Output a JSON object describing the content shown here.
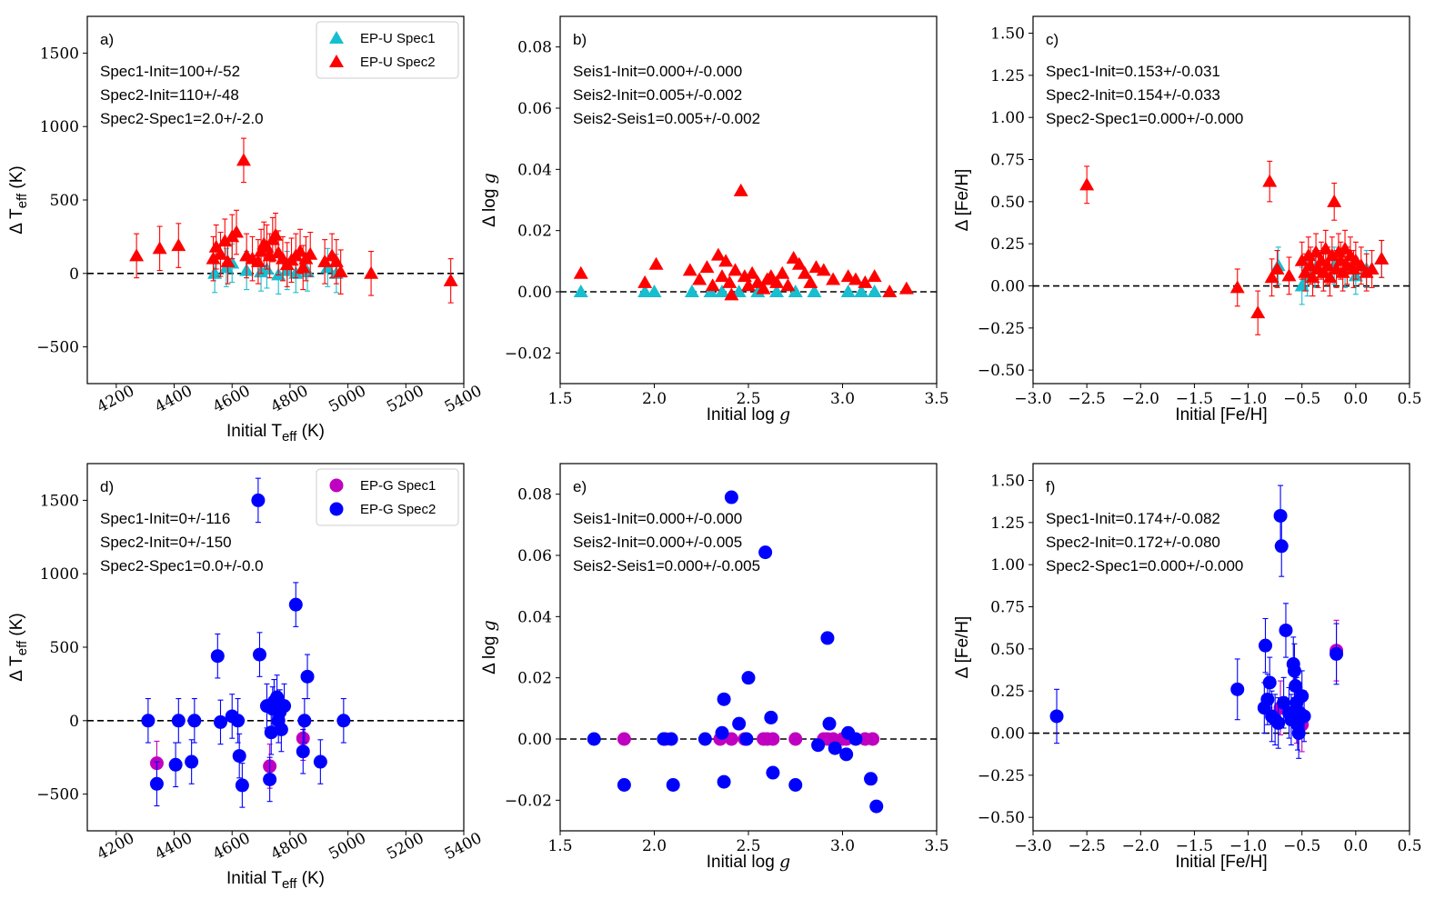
{
  "chart_data": [
    {
      "type": "scatter",
      "panel": "a)",
      "xlabel": "Initial T",
      "xlabel_sub": "eff",
      "xlabel_unit": " (K)",
      "ylabel": "Δ T",
      "ylabel_sub": "eff",
      "ylabel_unit": " (K)",
      "xlim": [
        4100,
        5400
      ],
      "ylim": [
        -750,
        1750
      ],
      "xticks": [
        4200,
        4400,
        4600,
        4800,
        5000,
        5200,
        5400
      ],
      "xtick_labels": [
        "4200",
        "4400",
        "4600",
        "4800",
        "5000",
        "5200",
        "5400"
      ],
      "yticks": [
        -500,
        0,
        500,
        1000,
        1500
      ],
      "ytick_labels": [
        "−500",
        "0",
        "500",
        "1000",
        "1500"
      ],
      "annotations": [
        "Spec1-Init=100+/-52",
        "Spec2-Init=110+/-48",
        "Spec2-Spec1=2.0+/-2.0"
      ],
      "legend": [
        "EP-U Spec1",
        "EP-U Spec2"
      ],
      "marker": "triangle",
      "series": [
        {
          "name": "EP-U Spec1",
          "color": "#17becf",
          "x": [
            4540,
            4580,
            4600,
            4650,
            4700,
            4720,
            4760,
            4790,
            4820,
            4860,
            4930,
            4960
          ],
          "y": [
            0,
            40,
            70,
            20,
            10,
            30,
            -10,
            20,
            0,
            10,
            40,
            0
          ],
          "err": [
            130,
            130,
            130,
            130,
            130,
            130,
            130,
            130,
            130,
            130,
            130,
            130
          ]
        },
        {
          "name": "EP-U Spec2",
          "color": "#ff0000",
          "x": [
            4270,
            4350,
            4415,
            4535,
            4545,
            4560,
            4575,
            4585,
            4600,
            4615,
            4640,
            4650,
            4670,
            4690,
            4700,
            4710,
            4720,
            4730,
            4740,
            4750,
            4760,
            4775,
            4790,
            4805,
            4820,
            4835,
            4845,
            4855,
            4870,
            4920,
            4945,
            4960,
            4975,
            5080,
            5355
          ],
          "y": [
            120,
            170,
            190,
            100,
            180,
            130,
            220,
            80,
            250,
            280,
            770,
            120,
            100,
            80,
            150,
            200,
            180,
            120,
            230,
            260,
            140,
            100,
            60,
            90,
            120,
            150,
            40,
            100,
            130,
            80,
            120,
            80,
            10,
            0,
            -50
          ],
          "err": [
            150,
            150,
            150,
            150,
            150,
            150,
            150,
            150,
            150,
            150,
            150,
            150,
            150,
            150,
            150,
            150,
            150,
            150,
            150,
            150,
            150,
            150,
            150,
            150,
            150,
            150,
            150,
            150,
            150,
            150,
            150,
            150,
            150,
            150,
            150
          ]
        }
      ]
    },
    {
      "type": "scatter",
      "panel": "b)",
      "xlabel": "Initial log ",
      "xlabel_italic": "g",
      "ylabel": "Δ log ",
      "ylabel_italic": "g",
      "xlim": [
        1.5,
        3.5
      ],
      "ylim": [
        -0.03,
        0.09
      ],
      "xticks": [
        1.5,
        2.0,
        2.5,
        3.0,
        3.5
      ],
      "xtick_labels": [
        "1.5",
        "2.0",
        "2.5",
        "3.0",
        "3.5"
      ],
      "yticks": [
        -0.02,
        0.0,
        0.02,
        0.04,
        0.06,
        0.08
      ],
      "ytick_labels": [
        "−0.02",
        "0.00",
        "0.02",
        "0.04",
        "0.06",
        "0.08"
      ],
      "annotations": [
        "Seis1-Init=0.000+/-0.000",
        "Seis2-Init=0.005+/-0.002",
        "Seis2-Seis1=0.005+/-0.002"
      ],
      "marker": "triangle",
      "series": [
        {
          "name": "EP-U Spec1",
          "color": "#17becf",
          "x": [
            1.61,
            1.95,
            2.0,
            2.2,
            2.3,
            2.36,
            2.45,
            2.55,
            2.65,
            2.75,
            2.85,
            3.03,
            3.1,
            3.17
          ],
          "y": [
            0,
            0,
            0,
            0,
            0,
            0,
            0,
            0,
            0,
            0,
            0,
            0,
            0,
            0
          ]
        },
        {
          "name": "EP-U Spec2",
          "color": "#ff0000",
          "x": [
            1.61,
            1.95,
            2.01,
            2.19,
            2.24,
            2.28,
            2.31,
            2.34,
            2.36,
            2.38,
            2.4,
            2.41,
            2.43,
            2.46,
            2.48,
            2.5,
            2.52,
            2.55,
            2.58,
            2.6,
            2.62,
            2.65,
            2.68,
            2.71,
            2.74,
            2.77,
            2.8,
            2.83,
            2.86,
            2.9,
            2.95,
            3.03,
            3.07,
            3.12,
            3.17,
            3.25,
            3.34
          ],
          "y": [
            0.006,
            0.003,
            0.009,
            0.007,
            0.004,
            0.008,
            0.002,
            0.012,
            0.005,
            0.01,
            0.003,
            -0.001,
            0.007,
            0.033,
            0.005,
            0.002,
            0.006,
            0.003,
            0.001,
            0.004,
            0.005,
            0.003,
            0.006,
            0.002,
            0.011,
            0.009,
            0.006,
            0.003,
            0.008,
            0.007,
            0.004,
            0.005,
            0.004,
            0.003,
            0.005,
            0.0,
            0.001
          ]
        }
      ]
    },
    {
      "type": "scatter",
      "panel": "c)",
      "xlabel": "Initial [Fe/H]",
      "ylabel": "Δ [Fe/H]",
      "xlim": [
        -3.0,
        0.5
      ],
      "ylim": [
        -0.58,
        1.6
      ],
      "xticks": [
        -3.0,
        -2.5,
        -2.0,
        -1.5,
        -1.0,
        -0.5,
        0.0,
        0.5
      ],
      "xtick_labels": [
        "−3.0",
        "−2.5",
        "−2.0",
        "−1.5",
        "−1.0",
        "−0.5",
        "0.0",
        "0.5"
      ],
      "yticks": [
        -0.5,
        -0.25,
        0.0,
        0.25,
        0.5,
        0.75,
        1.0,
        1.25,
        1.5
      ],
      "ytick_labels": [
        "−0.50",
        "−0.25",
        "0.00",
        "0.25",
        "0.50",
        "0.75",
        "1.00",
        "1.25",
        "1.50"
      ],
      "annotations": [
        "Spec1-Init=0.153+/-0.031",
        "Spec2-Init=0.154+/-0.033",
        "Spec2-Spec1=0.000+/-0.000"
      ],
      "marker": "triangle",
      "series": [
        {
          "name": "EP-U Spec1",
          "color": "#17becf",
          "x": [
            -0.72,
            -0.5,
            -0.45,
            -0.38,
            -0.3,
            -0.2,
            -0.1,
            0.0,
            0.1,
            0.24
          ],
          "y": [
            0.12,
            0.0,
            0.05,
            0.1,
            0.08,
            0.12,
            0.1,
            0.06,
            0.1,
            0.16
          ],
          "err": [
            0.11,
            0.11,
            0.11,
            0.11,
            0.11,
            0.11,
            0.11,
            0.11,
            0.11,
            0.11
          ]
        },
        {
          "name": "EP-U Spec2",
          "color": "#ff0000",
          "x": [
            -2.5,
            -1.1,
            -0.91,
            -0.8,
            -0.78,
            -0.73,
            -0.62,
            -0.5,
            -0.47,
            -0.44,
            -0.42,
            -0.4,
            -0.37,
            -0.35,
            -0.32,
            -0.3,
            -0.28,
            -0.26,
            -0.24,
            -0.22,
            -0.2,
            -0.18,
            -0.16,
            -0.14,
            -0.12,
            -0.1,
            -0.08,
            -0.05,
            -0.02,
            0.0,
            0.05,
            0.1,
            0.15,
            0.24
          ],
          "y": [
            0.6,
            -0.01,
            -0.16,
            0.62,
            0.05,
            0.1,
            0.06,
            0.15,
            0.08,
            0.18,
            0.12,
            0.05,
            0.2,
            0.1,
            0.15,
            0.08,
            0.22,
            0.12,
            0.05,
            0.18,
            0.5,
            0.1,
            0.2,
            0.15,
            0.08,
            0.22,
            0.12,
            0.18,
            0.1,
            0.15,
            0.12,
            0.08,
            0.1,
            0.16
          ],
          "err": [
            0.11,
            0.11,
            0.13,
            0.12,
            0.11,
            0.11,
            0.11,
            0.11,
            0.11,
            0.11,
            0.11,
            0.11,
            0.11,
            0.11,
            0.11,
            0.11,
            0.11,
            0.11,
            0.11,
            0.11,
            0.11,
            0.11,
            0.11,
            0.11,
            0.11,
            0.11,
            0.11,
            0.11,
            0.11,
            0.11,
            0.11,
            0.11,
            0.11,
            0.11
          ]
        }
      ]
    },
    {
      "type": "scatter",
      "panel": "d)",
      "xlabel": "Initial T",
      "xlabel_sub": "eff",
      "xlabel_unit": " (K)",
      "ylabel": "Δ T",
      "ylabel_sub": "eff",
      "ylabel_unit": " (K)",
      "xlim": [
        4100,
        5400
      ],
      "ylim": [
        -750,
        1750
      ],
      "xticks": [
        4200,
        4400,
        4600,
        4800,
        5000,
        5200,
        5400
      ],
      "xtick_labels": [
        "4200",
        "4400",
        "4600",
        "4800",
        "5000",
        "5200",
        "5400"
      ],
      "yticks": [
        -500,
        0,
        500,
        1000,
        1500
      ],
      "ytick_labels": [
        "−500",
        "0",
        "500",
        "1000",
        "1500"
      ],
      "annotations": [
        "Spec1-Init=0+/-116",
        "Spec2-Init=0+/-150",
        "Spec2-Spec1=0.0+/-0.0"
      ],
      "legend": [
        "EP-G Spec1",
        "EP-G Spec2"
      ],
      "marker": "circle",
      "series": [
        {
          "name": "EP-G Spec1",
          "color": "#c000c0",
          "x": [
            4340,
            4730,
            4845
          ],
          "y": [
            -290,
            -310,
            -120
          ],
          "err": [
            150,
            150,
            150
          ]
        },
        {
          "name": "EP-G Spec2",
          "color": "#0000ff",
          "x": [
            4310,
            4340,
            4405,
            4415,
            4460,
            4470,
            4550,
            4560,
            4600,
            4620,
            4625,
            4635,
            4690,
            4695,
            4720,
            4730,
            4735,
            4740,
            4745,
            4755,
            4760,
            4765,
            4770,
            4780,
            4820,
            4845,
            4850,
            4860,
            4905,
            4985
          ],
          "y": [
            0,
            -430,
            -300,
            0,
            -280,
            0,
            440,
            -10,
            30,
            0,
            -240,
            -440,
            1500,
            450,
            100,
            -400,
            -80,
            80,
            130,
            160,
            0,
            60,
            -60,
            100,
            790,
            -210,
            0,
            300,
            -280,
            0
          ],
          "err": [
            150,
            150,
            150,
            150,
            150,
            150,
            150,
            150,
            150,
            150,
            150,
            150,
            150,
            150,
            150,
            150,
            150,
            150,
            150,
            150,
            150,
            150,
            150,
            150,
            150,
            150,
            150,
            150,
            150,
            150
          ]
        }
      ]
    },
    {
      "type": "scatter",
      "panel": "e)",
      "xlabel": "Initial log ",
      "xlabel_italic": "g",
      "ylabel": "Δ log ",
      "ylabel_italic": "g",
      "xlim": [
        1.5,
        3.5
      ],
      "ylim": [
        -0.03,
        0.09
      ],
      "xticks": [
        1.5,
        2.0,
        2.5,
        3.0,
        3.5
      ],
      "xtick_labels": [
        "1.5",
        "2.0",
        "2.5",
        "3.0",
        "3.5"
      ],
      "yticks": [
        -0.02,
        0.0,
        0.02,
        0.04,
        0.06,
        0.08
      ],
      "ytick_labels": [
        "−0.02",
        "0.00",
        "0.02",
        "0.04",
        "0.06",
        "0.08"
      ],
      "annotations": [
        "Seis1-Init=0.000+/-0.000",
        "Seis2-Init=0.000+/-0.005",
        "Seis2-Seis1=0.000+/-0.005"
      ],
      "marker": "circle",
      "series": [
        {
          "name": "EP-G Spec1",
          "color": "#c000c0",
          "x": [
            1.84,
            2.06,
            2.35,
            2.41,
            2.48,
            2.58,
            2.6,
            2.63,
            2.75,
            2.9,
            2.92,
            2.95,
            3.0,
            3.02,
            3.12,
            3.16
          ],
          "y": [
            0,
            0,
            0,
            0,
            0,
            0,
            0,
            0,
            0,
            0,
            0,
            0,
            0,
            0,
            0,
            0
          ]
        },
        {
          "name": "EP-G Spec2",
          "color": "#0000ff",
          "x": [
            1.68,
            1.84,
            2.05,
            2.09,
            2.1,
            2.27,
            2.36,
            2.37,
            2.37,
            2.41,
            2.45,
            2.49,
            2.5,
            2.59,
            2.62,
            2.63,
            2.75,
            2.87,
            2.92,
            2.93,
            2.96,
            3.02,
            3.03,
            3.07,
            3.15,
            3.18
          ],
          "y": [
            0,
            -0.015,
            0,
            0,
            -0.015,
            0,
            0.002,
            0.013,
            -0.014,
            0.079,
            0.005,
            0,
            0.02,
            0.061,
            0.007,
            -0.011,
            -0.015,
            -0.002,
            0.033,
            0.005,
            -0.003,
            -0.005,
            0.002,
            0,
            -0.013,
            -0.022
          ]
        }
      ]
    },
    {
      "type": "scatter",
      "panel": "f)",
      "xlabel": "Initial [Fe/H]",
      "ylabel": "Δ [Fe/H]",
      "xlim": [
        -3.0,
        0.5
      ],
      "ylim": [
        -0.58,
        1.6
      ],
      "xticks": [
        -3.0,
        -2.5,
        -2.0,
        -1.5,
        -1.0,
        -0.5,
        0.0,
        0.5
      ],
      "xtick_labels": [
        "−3.0",
        "−2.5",
        "−2.0",
        "−1.5",
        "−1.0",
        "−0.5",
        "0.0",
        "0.5"
      ],
      "yticks": [
        -0.5,
        -0.25,
        0.0,
        0.25,
        0.5,
        0.75,
        1.0,
        1.25,
        1.5
      ],
      "ytick_labels": [
        "−0.50",
        "−0.25",
        "0.00",
        "0.25",
        "0.50",
        "0.75",
        "1.00",
        "1.25",
        "1.50"
      ],
      "annotations": [
        "Spec1-Init=0.174+/-0.082",
        "Spec2-Init=0.172+/-0.080",
        "Spec2-Spec1=0.000+/-0.000"
      ],
      "marker": "circle",
      "series": [
        {
          "name": "EP-G Spec1",
          "color": "#c000c0",
          "x": [
            -0.7,
            -0.55,
            -0.5,
            -0.18
          ],
          "y": [
            0.15,
            0.1,
            0.05,
            0.49
          ],
          "err": [
            0.16,
            0.16,
            0.16,
            0.18
          ]
        },
        {
          "name": "EP-G Spec2",
          "color": "#0000ff",
          "x": [
            -2.78,
            -1.1,
            -0.85,
            -0.84,
            -0.82,
            -0.8,
            -0.78,
            -0.75,
            -0.72,
            -0.7,
            -0.69,
            -0.67,
            -0.65,
            -0.62,
            -0.6,
            -0.58,
            -0.57,
            -0.56,
            -0.55,
            -0.54,
            -0.53,
            -0.52,
            -0.5,
            -0.48,
            -0.18
          ],
          "y": [
            0.1,
            0.26,
            0.15,
            0.52,
            0.2,
            0.3,
            0.1,
            0.08,
            0.06,
            1.29,
            1.11,
            0.18,
            0.61,
            0.12,
            0.08,
            0.41,
            0.37,
            0.28,
            0.18,
            0.05,
            0.0,
            0.12,
            0.22,
            0.1,
            0.47
          ],
          "err": [
            0.16,
            0.18,
            0.15,
            0.16,
            0.15,
            0.15,
            0.15,
            0.15,
            0.15,
            0.18,
            0.18,
            0.15,
            0.16,
            0.15,
            0.15,
            0.16,
            0.16,
            0.15,
            0.15,
            0.15,
            0.15,
            0.15,
            0.15,
            0.15,
            0.18
          ]
        }
      ]
    }
  ]
}
